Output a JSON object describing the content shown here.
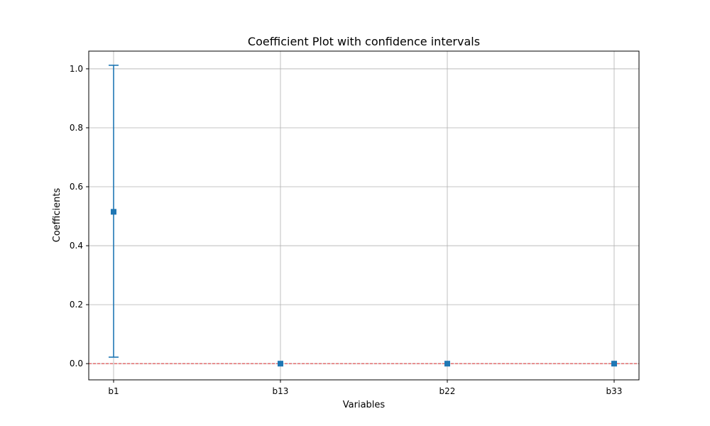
{
  "chart_data": {
    "type": "scatter",
    "title": "Coefficient Plot with confidence intervals",
    "xlabel": "Variables",
    "ylabel": "Coefficients",
    "categories": [
      "b1",
      "b13",
      "b22",
      "b33"
    ],
    "values": [
      0.515,
      0.0,
      0.0,
      0.0
    ],
    "ci_lower": [
      0.022,
      0.0,
      0.0,
      0.0
    ],
    "ci_upper": [
      1.012,
      0.0,
      0.0,
      0.0
    ],
    "ylim": [
      -0.055,
      1.06
    ],
    "yticks": [
      "0.0",
      "0.2",
      "0.4",
      "0.6",
      "0.8",
      "1.0"
    ],
    "ytick_values": [
      0.0,
      0.2,
      0.4,
      0.6,
      0.8,
      1.0
    ],
    "reference_line": 0.0,
    "grid": true,
    "marker": "square",
    "colors": {
      "series": "#1f77b4",
      "reference_line": "#d62728",
      "grid": "#b0b0b0",
      "axes": "#000000"
    }
  }
}
